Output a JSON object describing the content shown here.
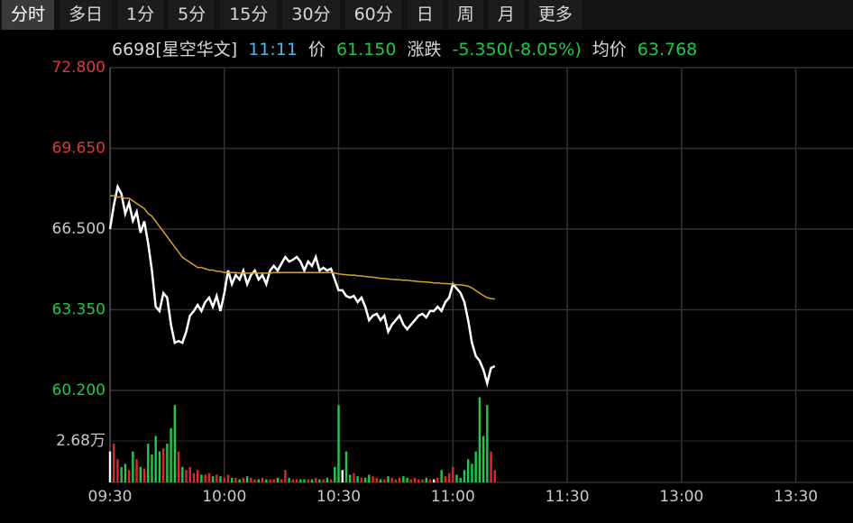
{
  "toolbar": {
    "tabs": [
      "分时",
      "多日",
      "1分",
      "5分",
      "15分",
      "30分",
      "60分",
      "日",
      "周",
      "月",
      "更多"
    ],
    "selected": 0
  },
  "info_bar": {
    "stock": "6698[星空华文]",
    "time": "11:11",
    "price_label": "价",
    "price": "61.150",
    "change_label": "涨跌",
    "change": "-5.350(-8.05%)",
    "avg_label": "均价",
    "avg": "63.768"
  },
  "chart_data": {
    "type": "line",
    "x": [
      0,
      1,
      2,
      3,
      4,
      5,
      6,
      7,
      8,
      9,
      10,
      11,
      12,
      13,
      14,
      15,
      16,
      17,
      18,
      19,
      20,
      21,
      22,
      23,
      24,
      25,
      26,
      27,
      28,
      29,
      30,
      31,
      32,
      33,
      34,
      35,
      36,
      37,
      38,
      39,
      40,
      41,
      42,
      43,
      44,
      45,
      46,
      47,
      48,
      49,
      50,
      51,
      52,
      53,
      54,
      55,
      56,
      57,
      58,
      59,
      60,
      61,
      62,
      63,
      64,
      65,
      66,
      67,
      68,
      69,
      70,
      71,
      72,
      73,
      74,
      75,
      76,
      77,
      78,
      79,
      80,
      81,
      82,
      83,
      84,
      85,
      86,
      87,
      88,
      89,
      90,
      91,
      92,
      93,
      94,
      95,
      96,
      97,
      98,
      99,
      100,
      101
    ],
    "xlim": [
      0,
      195
    ],
    "xticks": [
      {
        "value": 0,
        "label": "09:30"
      },
      {
        "value": 30,
        "label": "10:00"
      },
      {
        "value": 60,
        "label": "10:30"
      },
      {
        "value": 90,
        "label": "11:00"
      },
      {
        "value": 120,
        "label": "11:30"
      },
      {
        "value": 150,
        "label": "13:00"
      },
      {
        "value": 180,
        "label": "13:30"
      }
    ],
    "ylim": [
      60.2,
      72.8
    ],
    "yticks": [
      {
        "value": 72.8,
        "label": "72.800"
      },
      {
        "value": 69.65,
        "label": "69.650"
      },
      {
        "value": 66.5,
        "label": "66.500"
      },
      {
        "value": 63.35,
        "label": "63.350"
      },
      {
        "value": 60.2,
        "label": "60.200"
      }
    ],
    "ytick_colors": [
      "#d83a3a",
      "#d83a3a",
      "#c8c8c8",
      "#22c84a",
      "#22c84a"
    ],
    "y2lim": [
      0,
      53600
    ],
    "y2ticks": [
      {
        "value": 26800,
        "label": "2.68万"
      }
    ],
    "grid": true,
    "up_color": "#e02828",
    "down_color": "#22c84a",
    "flat_color": "#ffffff",
    "series": [
      {
        "color": "#ffffff",
        "values": [
          66.5,
          67.42,
          68.15,
          67.87,
          67.1,
          67.52,
          66.82,
          67.17,
          66.36,
          66.8,
          65.94,
          64.88,
          63.47,
          63.3,
          64.0,
          63.82,
          62.77,
          62.06,
          62.13,
          62.06,
          62.49,
          63.12,
          63.3,
          63.54,
          63.3,
          63.65,
          63.82,
          63.47,
          63.89,
          63.3,
          64.0,
          64.88,
          64.35,
          64.7,
          64.53,
          64.88,
          64.35,
          64.7,
          64.88,
          64.53,
          64.7,
          64.35,
          64.88,
          65.06,
          64.88,
          65.16,
          65.41,
          65.23,
          65.3,
          65.41,
          65.23,
          64.88,
          65.23,
          65.06,
          65.41,
          64.88,
          64.99,
          64.88,
          64.95,
          64.53,
          64.11,
          64.11,
          63.89,
          63.82,
          63.89,
          63.65,
          63.82,
          63.47,
          62.94,
          63.12,
          63.19,
          62.94,
          63.12,
          62.49,
          62.77,
          62.94,
          63.12,
          62.77,
          62.59,
          62.77,
          62.94,
          63.12,
          63.19,
          63.05,
          63.3,
          63.3,
          63.47,
          63.3,
          63.65,
          63.82,
          64.35,
          64.18,
          64.0,
          63.65,
          62.94,
          62.06,
          61.54,
          61.36,
          61.01,
          60.48,
          61.08,
          61.15
        ]
      },
      {
        "color": "#d4a030",
        "values": [
          67.8,
          67.8,
          67.75,
          67.75,
          67.7,
          67.7,
          67.6,
          67.5,
          67.4,
          67.3,
          67.1,
          67.0,
          66.8,
          66.6,
          66.4,
          66.2,
          66.0,
          65.8,
          65.6,
          65.4,
          65.3,
          65.2,
          65.1,
          65.0,
          65.0,
          64.95,
          64.9,
          64.9,
          64.85,
          64.85,
          64.8,
          64.8,
          64.8,
          64.8,
          64.78,
          64.78,
          64.78,
          64.78,
          64.78,
          64.78,
          64.78,
          64.78,
          64.78,
          64.8,
          64.8,
          64.8,
          64.8,
          64.8,
          64.8,
          64.8,
          64.8,
          64.8,
          64.8,
          64.8,
          64.8,
          64.8,
          64.8,
          64.8,
          64.8,
          64.78,
          64.75,
          64.73,
          64.72,
          64.7,
          64.7,
          64.68,
          64.67,
          64.65,
          64.63,
          64.62,
          64.6,
          64.58,
          64.57,
          64.55,
          64.54,
          64.53,
          64.52,
          64.5,
          64.5,
          64.48,
          64.47,
          64.45,
          64.44,
          64.43,
          64.42,
          64.4,
          64.4,
          64.38,
          64.37,
          64.36,
          64.35,
          64.33,
          64.32,
          64.3,
          64.27,
          64.2,
          64.1,
          64.0,
          63.9,
          63.82,
          63.79,
          63.768
        ]
      },
      {
        "axis": "y2",
        "values": [
          20000,
          25000,
          15000,
          10000,
          12000,
          8000,
          20000,
          15000,
          10000,
          9000,
          25000,
          18000,
          30000,
          20000,
          22000,
          25000,
          35000,
          50000,
          20000,
          10000,
          8000,
          10000,
          6000,
          8000,
          5000,
          5000,
          6000,
          4000,
          5000,
          4000,
          3000,
          5000,
          3000,
          3000,
          2000,
          3000,
          4000,
          3000,
          2000,
          2000,
          3000,
          2000,
          2000,
          2000,
          3000,
          2000,
          8000,
          3000,
          2000,
          2000,
          2000,
          2000,
          2000,
          2000,
          3000,
          2000,
          2000,
          3000,
          2000,
          10000,
          50000,
          8000,
          20000,
          5000,
          6000,
          4000,
          3000,
          3000,
          5000,
          4000,
          3000,
          2000,
          2000,
          4000,
          3000,
          2000,
          3000,
          4000,
          3000,
          2000,
          3000,
          2000,
          2000,
          3000,
          2000,
          2000,
          3000,
          8000,
          4000,
          6000,
          10000,
          5000,
          3000,
          8000,
          15000,
          12000,
          20000,
          55000,
          30000,
          50000,
          20000,
          8000
        ]
      }
    ]
  }
}
